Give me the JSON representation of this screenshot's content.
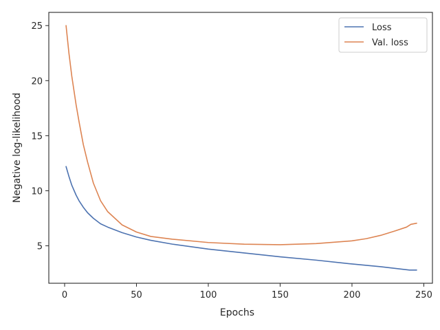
{
  "chart_data": {
    "type": "line",
    "title": "",
    "xlabel": "Epochs",
    "ylabel": "Negative log-likelihood",
    "xlim": [
      -11,
      256
    ],
    "ylim": [
      1.6,
      26.2
    ],
    "xticks": [
      0,
      50,
      100,
      150,
      200,
      250
    ],
    "yticks": [
      5,
      10,
      15,
      20,
      25
    ],
    "grid": false,
    "legend_position": "top-right",
    "series": [
      {
        "name": "Loss",
        "color": "#4c72b0",
        "x": [
          1,
          3,
          5,
          8,
          10,
          13,
          16,
          20,
          25,
          30,
          40,
          50,
          60,
          75,
          100,
          125,
          150,
          175,
          200,
          220,
          240,
          245
        ],
        "y": [
          12.2,
          11.3,
          10.5,
          9.6,
          9.1,
          8.5,
          8.0,
          7.5,
          7.0,
          6.7,
          6.2,
          5.8,
          5.5,
          5.15,
          4.7,
          4.35,
          4.0,
          3.7,
          3.35,
          3.1,
          2.8,
          2.8
        ]
      },
      {
        "name": "Val. loss",
        "color": "#dd8452",
        "x": [
          1,
          3,
          5,
          8,
          10,
          13,
          16,
          20,
          25,
          30,
          40,
          50,
          60,
          75,
          100,
          125,
          150,
          175,
          200,
          210,
          220,
          230,
          238,
          241,
          245
        ],
        "y": [
          25.0,
          22.5,
          20.4,
          17.8,
          16.3,
          14.2,
          12.6,
          10.7,
          9.1,
          8.1,
          6.9,
          6.25,
          5.85,
          5.6,
          5.3,
          5.15,
          5.1,
          5.2,
          5.45,
          5.65,
          5.95,
          6.35,
          6.7,
          6.95,
          7.05
        ]
      }
    ]
  }
}
